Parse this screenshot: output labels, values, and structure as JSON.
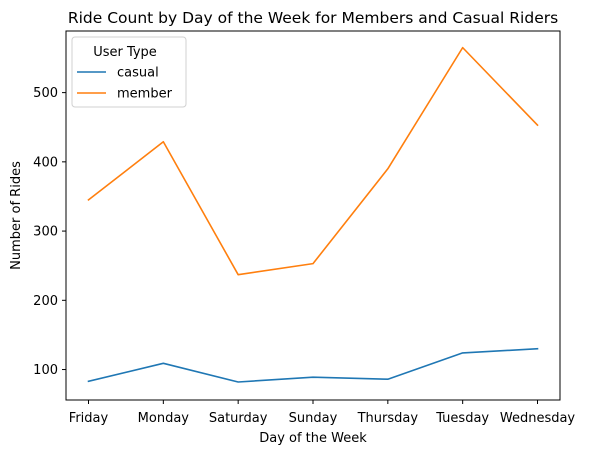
{
  "chart_data": {
    "type": "line",
    "title": "Ride Count by Day of the Week for Members and Casual Riders",
    "xlabel": "Day of the Week",
    "ylabel": "Number of Rides",
    "categories": [
      "Friday",
      "Monday",
      "Saturday",
      "Sunday",
      "Thursday",
      "Tuesday",
      "Wednesday"
    ],
    "ylim": [
      56,
      589
    ],
    "yticks": [
      100,
      200,
      300,
      400,
      500
    ],
    "grid": false,
    "legend": {
      "title": "User Type",
      "placement": "top-left"
    },
    "series": [
      {
        "name": "casual",
        "color": "#1f77b4",
        "values": [
          83,
          109,
          82,
          89,
          86,
          124,
          130
        ]
      },
      {
        "name": "member",
        "color": "#ff7f0e",
        "values": [
          345,
          429,
          237,
          253,
          390,
          565,
          453
        ]
      }
    ]
  }
}
